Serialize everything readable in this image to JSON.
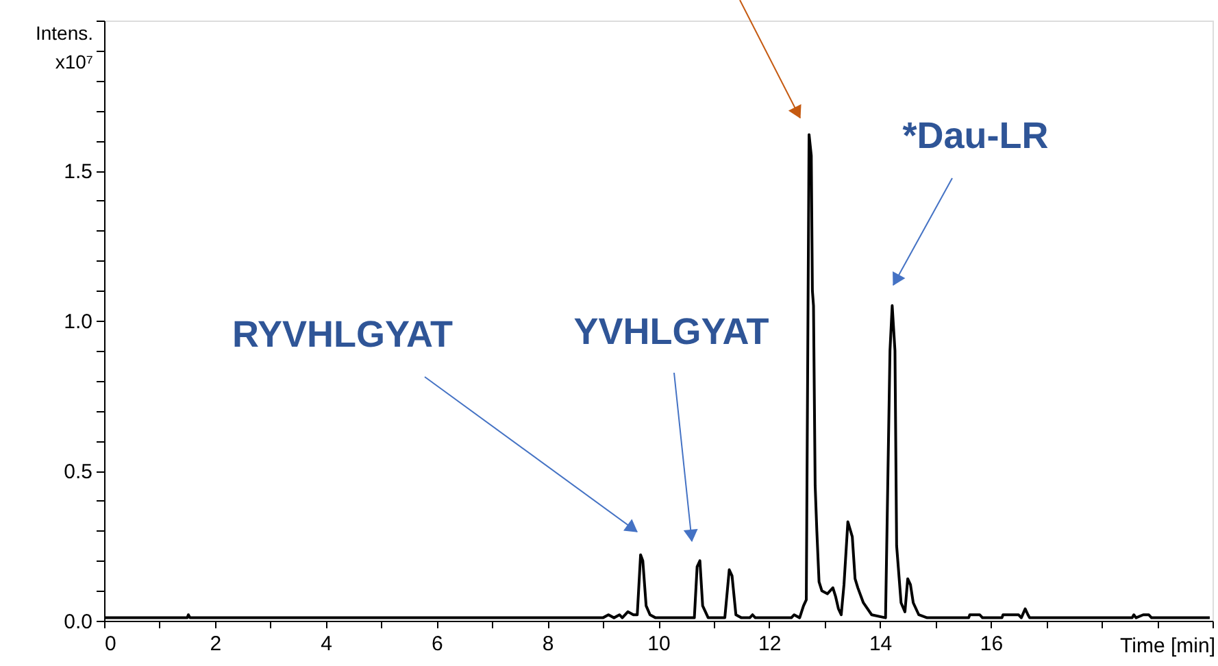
{
  "chart_data": {
    "type": "line",
    "xlabel": "Time [min]",
    "ylabel": "Intens.\nx10⁷",
    "x": [
      0,
      1.5,
      1.52,
      1.55,
      9.0,
      9.1,
      9.2,
      9.3,
      9.35,
      9.45,
      9.55,
      9.62,
      9.68,
      9.72,
      9.78,
      9.85,
      9.95,
      10.65,
      10.7,
      10.75,
      10.8,
      10.9,
      11.2,
      11.28,
      11.33,
      11.4,
      11.5,
      11.65,
      11.7,
      11.75,
      12.4,
      12.45,
      12.55,
      12.62,
      12.67,
      12.72,
      12.76,
      12.78,
      12.8,
      12.83,
      12.86,
      12.9,
      12.95,
      13.05,
      13.15,
      13.2,
      13.25,
      13.3,
      13.35,
      13.42,
      13.5,
      13.55,
      13.6,
      13.7,
      13.85,
      14.1,
      14.18,
      14.22,
      14.27,
      14.3,
      14.38,
      14.45,
      14.5,
      14.55,
      14.6,
      14.7,
      14.85,
      15.6,
      15.62,
      15.8,
      15.85,
      16.2,
      16.22,
      16.5,
      16.55,
      16.62,
      16.67,
      16.7,
      18.55,
      18.58,
      18.62,
      18.75,
      18.85,
      18.9,
      19.95
    ],
    "series": [
      {
        "color": "#000000",
        "values": [
          0.01,
          0.01,
          0.02,
          0.01,
          0.01,
          0.02,
          0.01,
          0.02,
          0.01,
          0.03,
          0.02,
          0.02,
          0.22,
          0.2,
          0.05,
          0.02,
          0.01,
          0.01,
          0.18,
          0.2,
          0.05,
          0.01,
          0.01,
          0.17,
          0.15,
          0.02,
          0.01,
          0.01,
          0.02,
          0.01,
          0.01,
          0.02,
          0.01,
          0.05,
          0.07,
          1.62,
          1.55,
          1.1,
          1.05,
          0.45,
          0.3,
          0.13,
          0.1,
          0.09,
          0.11,
          0.08,
          0.04,
          0.02,
          0.12,
          0.33,
          0.28,
          0.14,
          0.11,
          0.06,
          0.02,
          0.01,
          0.9,
          1.05,
          0.9,
          0.25,
          0.06,
          0.03,
          0.14,
          0.12,
          0.06,
          0.02,
          0.01,
          0.01,
          0.02,
          0.02,
          0.01,
          0.01,
          0.02,
          0.02,
          0.01,
          0.04,
          0.02,
          0.01,
          0.01,
          0.02,
          0.01,
          0.02,
          0.02,
          0.01,
          0.01
        ]
      }
    ],
    "xlim": [
      0,
      20
    ],
    "xticks": [
      0,
      {
        "value": 1,
        "label": null
      },
      2,
      {
        "value": 3,
        "label": null
      },
      4,
      {
        "value": 5,
        "label": null
      },
      6,
      {
        "value": 7,
        "label": null
      },
      8,
      {
        "value": 9,
        "label": null
      },
      10,
      {
        "value": 11,
        "label": null
      },
      12,
      {
        "value": 13,
        "label": null
      },
      14,
      {
        "value": 15,
        "label": null
      },
      16,
      {
        "value": 17,
        "label": null
      },
      {
        "value": 18,
        "label": null
      },
      {
        "value": 19,
        "label": null
      },
      {
        "value": 20,
        "label": null
      }
    ],
    "ylim": [
      0,
      2.0
    ],
    "yticks": [
      {
        "value": 0,
        "label": "0.0"
      },
      {
        "value": 0.1,
        "label": null
      },
      {
        "value": 0.2,
        "label": null
      },
      {
        "value": 0.3,
        "label": null
      },
      {
        "value": 0.4,
        "label": null
      },
      0.5,
      {
        "value": 0.6,
        "label": null
      },
      {
        "value": 0.7,
        "label": null
      },
      {
        "value": 0.8,
        "label": null
      },
      {
        "value": 0.9,
        "label": null
      },
      {
        "value": 1.0,
        "label": "1.0"
      },
      {
        "value": 1.1,
        "label": null
      },
      {
        "value": 1.2,
        "label": null
      },
      {
        "value": 1.3,
        "label": null
      },
      {
        "value": 1.4,
        "label": null
      },
      1.5,
      {
        "value": 1.6,
        "label": null
      },
      {
        "value": 1.7,
        "label": null
      },
      {
        "value": 1.8,
        "label": null
      },
      {
        "value": 1.9,
        "label": null
      },
      {
        "value": 2.0,
        "label": null
      }
    ],
    "annotations": [
      "RYVHLGYAT",
      "YVHLGYAT",
      "*Dau-LR"
    ],
    "grid": false,
    "marker": "none",
    "line_style": "solid"
  }
}
